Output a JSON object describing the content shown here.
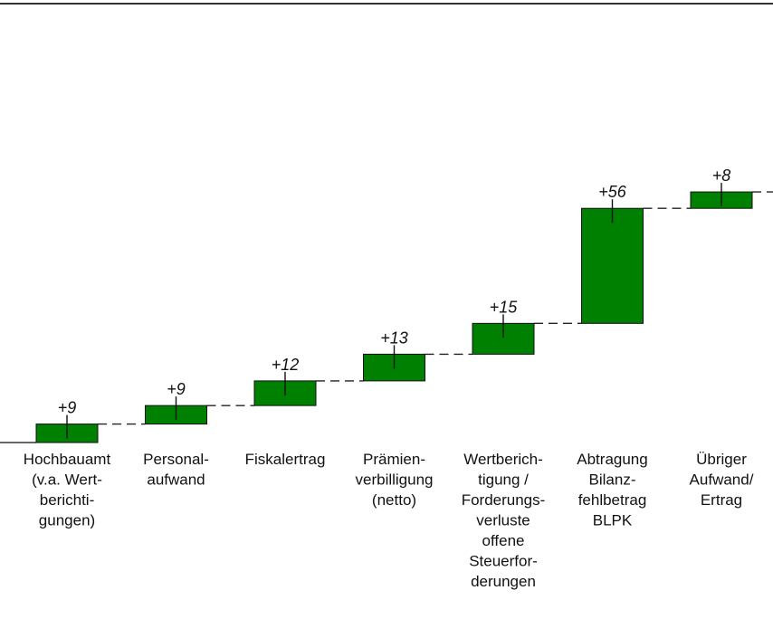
{
  "chart_data": {
    "type": "waterfall",
    "categories": [
      "Hochbauamt (v.a. Wert- berichti- gungen)",
      "Personal- aufwand",
      "Fiskalertrag",
      "Prämien- verbilligung (netto)",
      "Wertberich- tigung / Forderungs- verluste offene Steuerfor- derungen",
      "Abtragung Bilanz- fehlbetrag BLPK",
      "Übriger Aufwand/ Ertrag"
    ],
    "category_lines": [
      [
        "Hochbauamt",
        "(v.a. Wert-",
        "berichti-",
        "gungen)"
      ],
      [
        "Personal-",
        "aufwand"
      ],
      [
        "Fiskalertrag"
      ],
      [
        "Prämien-",
        "verbilligung",
        "(netto)"
      ],
      [
        "Wertberich-",
        "tigung /",
        "Forderungs-",
        "verluste",
        "offene",
        "Steuerfor-",
        "derungen"
      ],
      [
        "Abtragung",
        "Bilanz-",
        "fehlbetrag",
        "BLPK"
      ],
      [
        "Übriger",
        "Aufwand/",
        "Ertrag"
      ]
    ],
    "values": [
      9,
      9,
      12,
      13,
      15,
      56,
      8
    ],
    "labels": [
      "+9",
      "+9",
      "+12",
      "+13",
      "+15",
      "+56",
      "+8"
    ],
    "bar_color": "#008000",
    "connector_style": "dashed"
  }
}
